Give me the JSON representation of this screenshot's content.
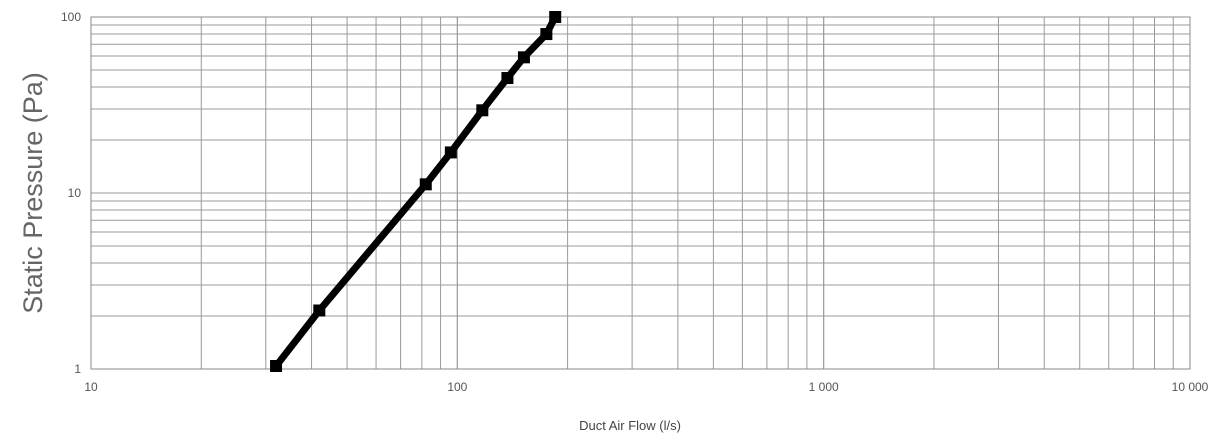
{
  "chart_data": {
    "type": "line",
    "xlabel": "Duct Air Flow (l/s)",
    "ylabel": "Static Pressure (Pa)",
    "x_scale": "log",
    "y_scale": "log",
    "xlim": [
      10,
      10000
    ],
    "ylim": [
      1,
      100
    ],
    "x_ticks": [
      {
        "value": 10,
        "label": "10"
      },
      {
        "value": 100,
        "label": "100"
      },
      {
        "value": 1000,
        "label": "1 000"
      },
      {
        "value": 10000,
        "label": "10 000"
      }
    ],
    "y_ticks": [
      {
        "value": 1,
        "label": "1"
      },
      {
        "value": 10,
        "label": "10"
      },
      {
        "value": 100,
        "label": "100"
      }
    ],
    "grid": true,
    "legend": "none",
    "series": [
      {
        "color": "#000000",
        "marker": "square",
        "x": [
          32,
          42,
          82,
          96,
          117,
          137,
          152,
          175,
          185
        ],
        "y": [
          1.04,
          2.15,
          11.2,
          17,
          29.5,
          45,
          59,
          80,
          100
        ]
      }
    ]
  }
}
